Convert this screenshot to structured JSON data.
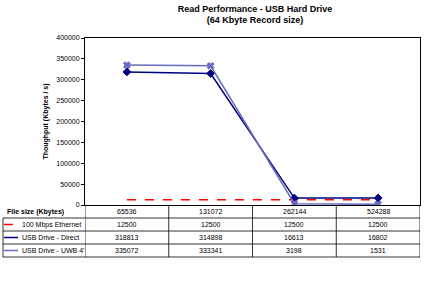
{
  "chart_data": {
    "type": "line",
    "title": "Read Performance - USB Hard Drive",
    "subtitle": "(64 Kbyte Record size)",
    "y_label": "Thoughput (Kbytes / s)",
    "x_label": "File size (Kbytes)",
    "categories": [
      "65536",
      "131072",
      "262144",
      "524288"
    ],
    "series": [
      {
        "name": "100 Mbps Ethernet",
        "color": "#ff0000",
        "line_style": "dashed",
        "marker": "none",
        "values": [
          12500,
          12500,
          12500,
          12500
        ]
      },
      {
        "name": "USB Drive - Direct",
        "color": "#000080",
        "line_style": "solid",
        "marker": "diamond",
        "values": [
          318813,
          314898,
          16613,
          16802
        ]
      },
      {
        "name": "USB Drive - UWB 4'",
        "color": "#6a6ac0",
        "line_style": "solid",
        "marker": "x",
        "values": [
          335072,
          333341,
          3198,
          1531
        ]
      }
    ],
    "ylim": [
      0,
      400000
    ],
    "yticks": [
      0,
      50000,
      100000,
      150000,
      200000,
      250000,
      300000,
      350000,
      400000
    ],
    "grid": false
  }
}
